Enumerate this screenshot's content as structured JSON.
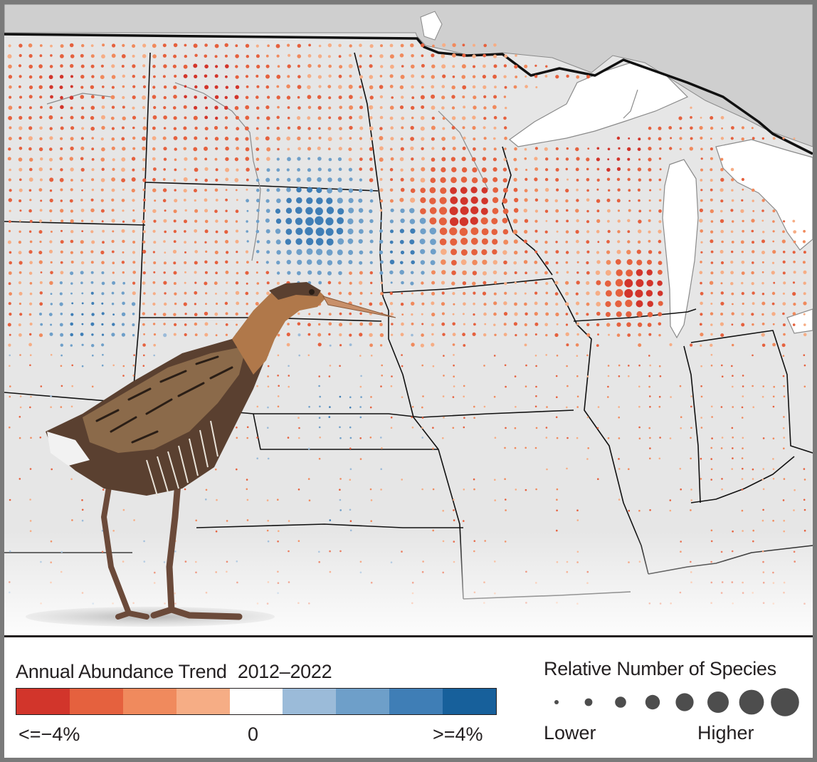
{
  "legend": {
    "trend_title": "Annual Abundance Trend",
    "trend_years": "2012–2022",
    "low_label": "<=−4%",
    "mid_label": "0",
    "high_label": ">=4%",
    "trend_colors": [
      "#d2352b",
      "#e5613e",
      "#f08a5d",
      "#f6ad85",
      "#ffffff",
      "#9bbbd9",
      "#6e9fc9",
      "#3f7eb6",
      "#17609b"
    ],
    "size_title": "Relative Number of Species",
    "size_low_label": "Lower",
    "size_high_label": "Higher",
    "size_steps": 8
  },
  "map": {
    "colors": {
      "background_land": "#e6e6e6",
      "neighbor_land": "#cfcfcf",
      "lakes": "#ffffff",
      "state_borders": "#111111",
      "coast_lines": "#8a8a8a"
    },
    "illustration": "king-rail-bird"
  }
}
